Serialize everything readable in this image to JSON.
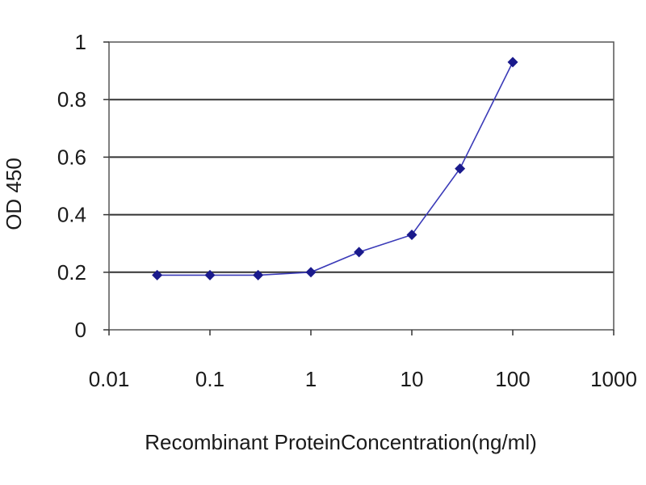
{
  "chart_data": {
    "type": "line",
    "title": "",
    "xlabel": "Recombinant ProteinConcentration(ng/ml)",
    "ylabel": "OD 450",
    "x_scale": "log",
    "xlim": [
      0.01,
      1000
    ],
    "ylim": [
      0,
      1
    ],
    "x_ticks": [
      0.01,
      0.1,
      1,
      10,
      100,
      1000
    ],
    "x_tick_labels": [
      "0.01",
      "0.1",
      "1",
      "10",
      "100",
      "1000"
    ],
    "y_ticks": [
      0,
      0.2,
      0.4,
      0.6,
      0.8,
      1
    ],
    "y_tick_labels": [
      "0",
      "0.2",
      "0.4",
      "0.6",
      "0.8",
      "1"
    ],
    "grid": "horizontal",
    "legend": "none",
    "series": [
      {
        "color": "#1a1a8c",
        "marker": "diamond",
        "points": [
          {
            "x": 0.03,
            "y": 0.19
          },
          {
            "x": 0.1,
            "y": 0.19
          },
          {
            "x": 0.3,
            "y": 0.19
          },
          {
            "x": 1,
            "y": 0.2
          },
          {
            "x": 3,
            "y": 0.27
          },
          {
            "x": 10,
            "y": 0.33
          },
          {
            "x": 30,
            "y": 0.56
          },
          {
            "x": 100,
            "y": 0.93
          }
        ]
      }
    ]
  }
}
